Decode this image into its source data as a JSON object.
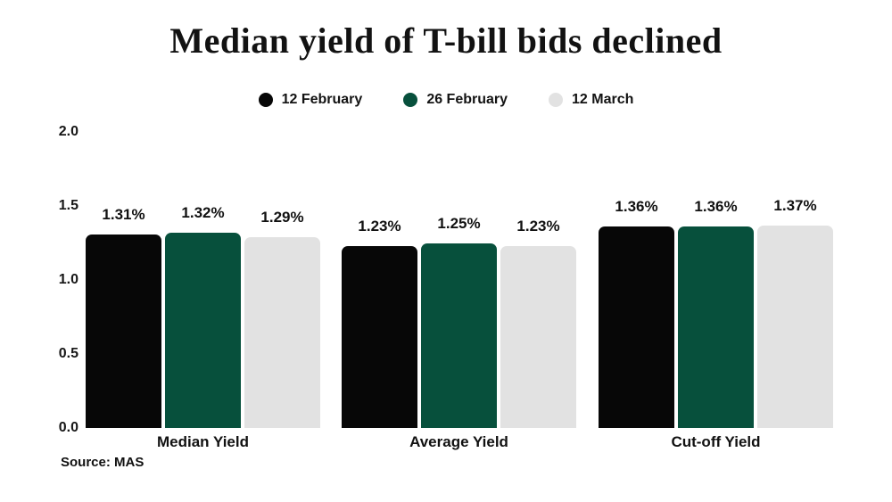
{
  "title": "Median yield of T-bill bids declined",
  "source": "Source: MAS",
  "colors": {
    "background": "#ffffff",
    "text": "#111111",
    "series_black": "#070707",
    "series_green": "#07503c",
    "series_gray": "#e2e2e2"
  },
  "chart_data": {
    "type": "bar",
    "title": "Median yield of T-bill bids declined",
    "categories": [
      "Median Yield",
      "Average Yield",
      "Cut-off Yield"
    ],
    "series": [
      {
        "name": "12 February",
        "color": "#070707",
        "values": [
          1.31,
          1.23,
          1.36
        ],
        "labels": [
          "1.31%",
          "1.23%",
          "1.36%"
        ]
      },
      {
        "name": "26 February",
        "color": "#07503c",
        "values": [
          1.32,
          1.25,
          1.36
        ],
        "labels": [
          "1.32%",
          "1.25%",
          "1.36%"
        ]
      },
      {
        "name": "12 March",
        "color": "#e2e2e2",
        "values": [
          1.29,
          1.23,
          1.37
        ],
        "labels": [
          "1.29%",
          "1.23%",
          "1.37%"
        ]
      }
    ],
    "xlabel": "",
    "ylabel": "",
    "ylim": [
      0.0,
      2.0
    ],
    "y_ticks": [
      "0.0",
      "0.5",
      "1.0",
      "1.5",
      "2.0"
    ],
    "grid": false,
    "legend_position": "top",
    "source": "Source: MAS"
  }
}
